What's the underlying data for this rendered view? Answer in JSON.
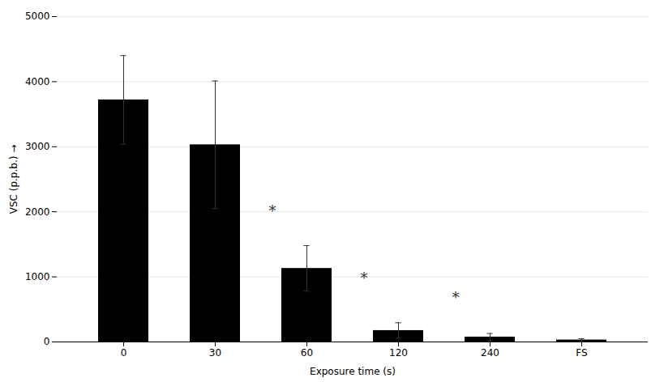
{
  "chart_data": {
    "type": "bar",
    "categories": [
      "0",
      "30",
      "60",
      "120",
      "240",
      "FS"
    ],
    "values": [
      3720,
      3030,
      1130,
      175,
      75,
      30
    ],
    "error_bars": [
      680,
      980,
      350,
      120,
      55,
      20
    ],
    "xlabel": "Exposure time (s)",
    "ylabel": "VSC (p.p.b.)",
    "ylim": [
      0,
      5000
    ],
    "yticks": [
      0,
      1000,
      2000,
      3000,
      4000,
      5000
    ],
    "grid": true,
    "annotations": [
      {
        "text": "*",
        "category": "60",
        "y": 2000
      },
      {
        "text": "*",
        "category": "120",
        "y": 970
      },
      {
        "text": "*",
        "category": "240",
        "y": 680
      }
    ]
  }
}
